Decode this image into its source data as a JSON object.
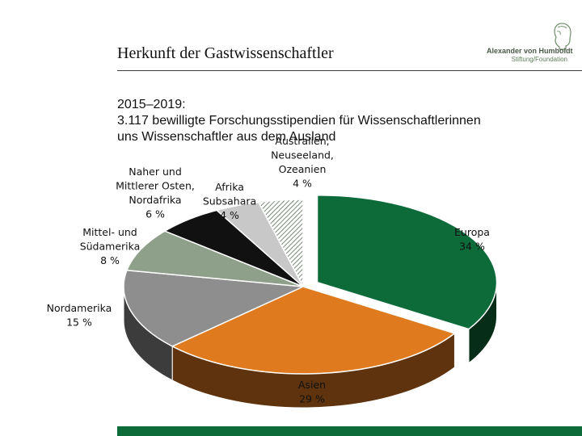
{
  "header": {
    "title": "Herkunft der Gastwissenschaftler"
  },
  "logo": {
    "line1": "Alexander von Humboldt",
    "line2": "Stiftung/Foundation"
  },
  "subtitle": {
    "line1": "2015–2019:",
    "line2": "3.117 bewilligte Forschungsstipendien für Wissenschaftlerinnen",
    "line3": "uns Wissenschaftler aus dem Ausland"
  },
  "colors": {
    "europa": "#0d6b3a",
    "asien": "#e07a1e",
    "nordamerika": "#8e8e8e",
    "mittel_suedamerika": "#8fa08a",
    "naher_osten": "#111111",
    "afrika": "#c8c8c8",
    "australien": "#a4a4a4",
    "accent_bar": "#0d6b3a"
  },
  "chart_data": {
    "type": "pie",
    "style": "3d-exploded",
    "unit": "%",
    "slices": [
      {
        "key": "europa",
        "label_lines": [
          "Europa",
          "34 %"
        ],
        "value": 34,
        "exploded": true
      },
      {
        "key": "asien",
        "label_lines": [
          "Asien",
          "29 %"
        ],
        "value": 29,
        "exploded": false
      },
      {
        "key": "nordamerika",
        "label_lines": [
          "Nordamerika",
          "15 %"
        ],
        "value": 15,
        "exploded": false
      },
      {
        "key": "mittel_suedamerika",
        "label_lines": [
          "Mittel- und",
          "Südamerika",
          "8 %"
        ],
        "value": 8,
        "exploded": false
      },
      {
        "key": "naher_osten",
        "label_lines": [
          "Naher und",
          "Mittlerer Osten,",
          "Nordafrika",
          "6 %"
        ],
        "value": 6,
        "exploded": false
      },
      {
        "key": "afrika",
        "label_lines": [
          "Afrika",
          "Subsahara",
          "4 %"
        ],
        "value": 4,
        "exploded": false
      },
      {
        "key": "australien",
        "label_lines": [
          "Australien,",
          "Neuseeland,",
          "Ozeanien",
          "4 %"
        ],
        "value": 4,
        "exploded": false,
        "hatched": true
      }
    ]
  }
}
